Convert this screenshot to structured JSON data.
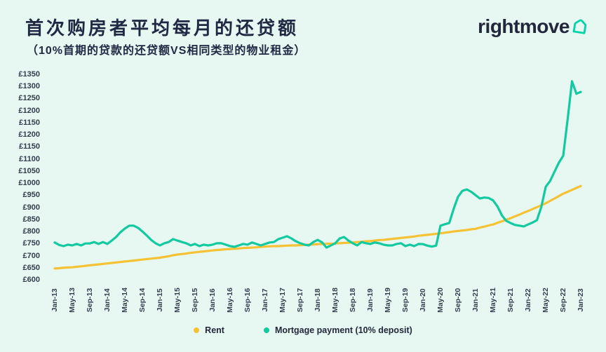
{
  "header": {
    "title": "首次购房者平均每月的还贷额",
    "subtitle": "（10%首期的贷款的还贷额VS相同类型的物业租金）",
    "brand": "rightmove"
  },
  "colors": {
    "background": "#e6f8f1",
    "navy": "#212843",
    "rent_line": "#f6c235",
    "mortgage_line": "#12c9a0",
    "brand_teal": "#00d3a7",
    "axis_text": "#333c4c"
  },
  "legend": {
    "items": [
      {
        "label": "Rent",
        "color": "#f6c235"
      },
      {
        "label": "Mortgage payment (10% deposit)",
        "color": "#12c9a0"
      }
    ]
  },
  "chart_data": {
    "type": "line",
    "title": "首次购房者平均每月的还贷额",
    "subtitle": "（10%首期的贷款的还贷额VS相同类型的物业租金）",
    "xlabel": "",
    "ylabel": "",
    "grid": false,
    "legend_position": "bottom",
    "x_unit": "month",
    "x_start": "Jan-13",
    "x_end": "Jan-23",
    "x_tick_labels": [
      "Jan-13",
      "May-13",
      "Sep-13",
      "Jan-14",
      "May-14",
      "Sep-14",
      "Jan-15",
      "May-15",
      "Sep-15",
      "Jan-16",
      "May-16",
      "Sep-16",
      "Jan-17",
      "May-17",
      "Sep-17",
      "Jan-18",
      "May-18",
      "Sep-18",
      "Jan-19",
      "May-19",
      "Sep-19",
      "Jan-20",
      "May-20",
      "Sep-20",
      "Jan-21",
      "May-21",
      "Sep-21",
      "Jan-22",
      "May-22",
      "Sep-22",
      "Jan-23"
    ],
    "y_tick_labels_as_printed": [
      "£1350",
      "£1300",
      "£1250",
      "£1200",
      "£1150",
      "£1200",
      "£1150",
      "£1100",
      "£1050",
      "£1000",
      "£950",
      "£900",
      "£850",
      "£800",
      "£750",
      "£700",
      "£650",
      "£600"
    ],
    "y_axis_note": "Axis labels reproduced exactly as printed in source image, including the duplicated £1200 and £1150 entries",
    "ylim": [
      600,
      1350
    ],
    "currency": "GBP",
    "series": [
      {
        "name": "Rent",
        "color": "#f6c235",
        "values": [
          647,
          648,
          650,
          651,
          652,
          654,
          656,
          658,
          660,
          662,
          664,
          666,
          668,
          670,
          672,
          674,
          676,
          678,
          680,
          682,
          684,
          686,
          688,
          690,
          692,
          695,
          698,
          702,
          705,
          707,
          709,
          712,
          714,
          716,
          718,
          720,
          722,
          724,
          725,
          727,
          728,
          729,
          730,
          732,
          733,
          734,
          735,
          737,
          738,
          739,
          740,
          740,
          741,
          742,
          743,
          743,
          744,
          745,
          746,
          747,
          748,
          749,
          750,
          750,
          751,
          752,
          753,
          754,
          755,
          757,
          758,
          760,
          761,
          763,
          765,
          766,
          768,
          770,
          772,
          774,
          776,
          778,
          780,
          783,
          785,
          787,
          789,
          791,
          793,
          796,
          798,
          801,
          803,
          805,
          807,
          810,
          812,
          817,
          821,
          826,
          830,
          837,
          843,
          850,
          856,
          864,
          871,
          879,
          886,
          894,
          902,
          910,
          918,
          928,
          938,
          948,
          958,
          966,
          974,
          982,
          990
        ]
      },
      {
        "name": "Mortgage payment (10% deposit)",
        "color": "#12c9a0",
        "values": [
          755,
          745,
          740,
          746,
          743,
          749,
          743,
          751,
          751,
          757,
          749,
          757,
          749,
          763,
          778,
          798,
          813,
          825,
          825,
          816,
          801,
          784,
          766,
          752,
          743,
          752,
          757,
          769,
          763,
          757,
          752,
          743,
          749,
          740,
          746,
          743,
          746,
          752,
          752,
          746,
          740,
          737,
          743,
          749,
          746,
          755,
          749,
          743,
          749,
          755,
          757,
          769,
          775,
          781,
          772,
          760,
          752,
          746,
          743,
          757,
          766,
          755,
          734,
          743,
          752,
          772,
          778,
          763,
          752,
          743,
          757,
          752,
          749,
          755,
          752,
          746,
          743,
          743,
          749,
          752,
          740,
          746,
          740,
          749,
          748,
          742,
          738,
          742,
          825,
          831,
          836,
          895,
          945,
          970,
          976,
          966,
          952,
          938,
          942,
          940,
          930,
          905,
          868,
          845,
          836,
          828,
          825,
          822,
          830,
          838,
          848,
          903,
          986,
          1011,
          1049,
          1087,
          1116,
          1227,
          1331,
          1297,
          1302
        ]
      }
    ]
  }
}
